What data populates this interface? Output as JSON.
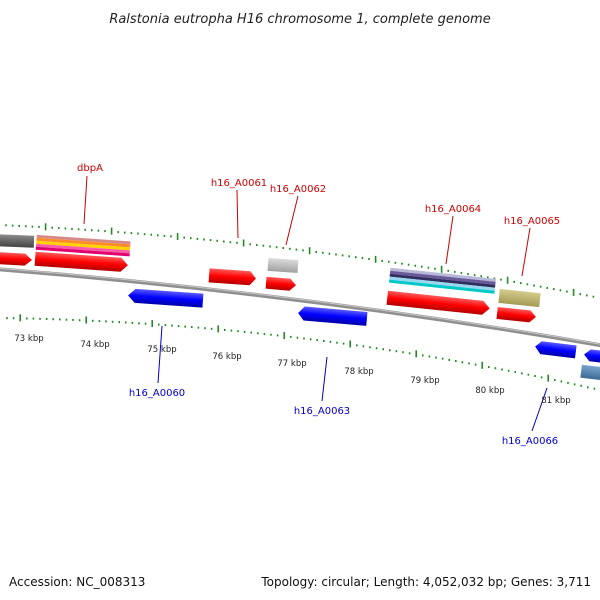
{
  "title": "Ralstonia eutropha H16 chromosome 1, complete genome",
  "footer": {
    "accession": "Accession: NC_008313",
    "summary": "Topology: circular; Length: 4,052,032 bp; Genes: 3,711"
  },
  "scale_labels": [
    "73 kbp",
    "74 kbp",
    "75 kbp",
    "76 kbp",
    "77 kbp",
    "78 kbp",
    "79 kbp",
    "80 kbp",
    "81 kbp"
  ],
  "gene_labels": {
    "dbpA": "dbpA",
    "h16_A0060": "h16_A0060",
    "h16_A0061": "h16_A0061",
    "h16_A0062": "h16_A0062",
    "h16_A0063": "h16_A0063",
    "h16_A0064": "h16_A0064",
    "h16_A0065": "h16_A0065",
    "h16_A0066": "h16_A0066"
  },
  "colors": {
    "forward_gene": "#ff0000",
    "reverse_gene": "#0000ff",
    "top_label": "#cc0000",
    "bottom_label": "#0000cc",
    "backbone": "#777777",
    "tick": "#228b22"
  }
}
